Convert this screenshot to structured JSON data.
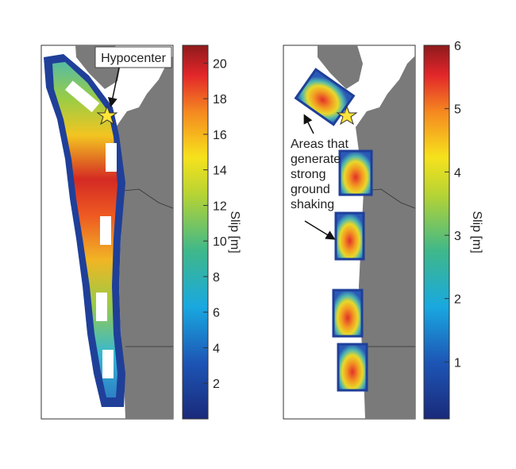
{
  "panels": [
    {
      "annotation": "Hypocenter",
      "colorbar": {
        "label": "Slip [m]",
        "lim": [
          0,
          21
        ],
        "ticks": [
          2,
          4,
          6,
          8,
          10,
          12,
          14,
          16,
          18,
          20
        ]
      }
    },
    {
      "annotation_lines": [
        "Areas that",
        "generate",
        "strong",
        "ground",
        "shaking"
      ],
      "colorbar": {
        "label": "Slip [m]",
        "lim": [
          0.1,
          6
        ],
        "ticks": [
          1,
          2,
          3,
          4,
          5,
          6
        ]
      }
    }
  ]
}
